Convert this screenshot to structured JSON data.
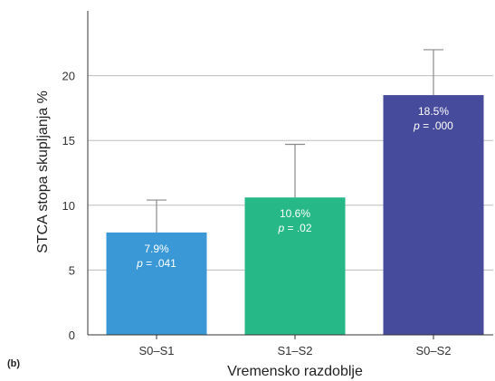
{
  "panel_label": "(b)",
  "chart_data": {
    "type": "bar",
    "categories": [
      "S0–S1",
      "S1–S2",
      "S0–S2"
    ],
    "values": [
      7.9,
      10.6,
      18.5
    ],
    "error_upper": [
      10.4,
      14.7,
      22.0
    ],
    "value_labels": [
      "7.9%",
      "10.6%",
      "18.5%"
    ],
    "p_prefix": "p",
    "p_values": [
      "= .041",
      "= .02",
      "= .000"
    ],
    "colors": [
      "#3a98d6",
      "#27b887",
      "#474b9c"
    ],
    "xlabel": "Vremensko razdoblje",
    "ylabel": "STCA stopa skupljanja %",
    "ylim": [
      0,
      25
    ],
    "yticks": [
      0,
      5,
      10,
      15,
      20
    ],
    "grid": true
  }
}
